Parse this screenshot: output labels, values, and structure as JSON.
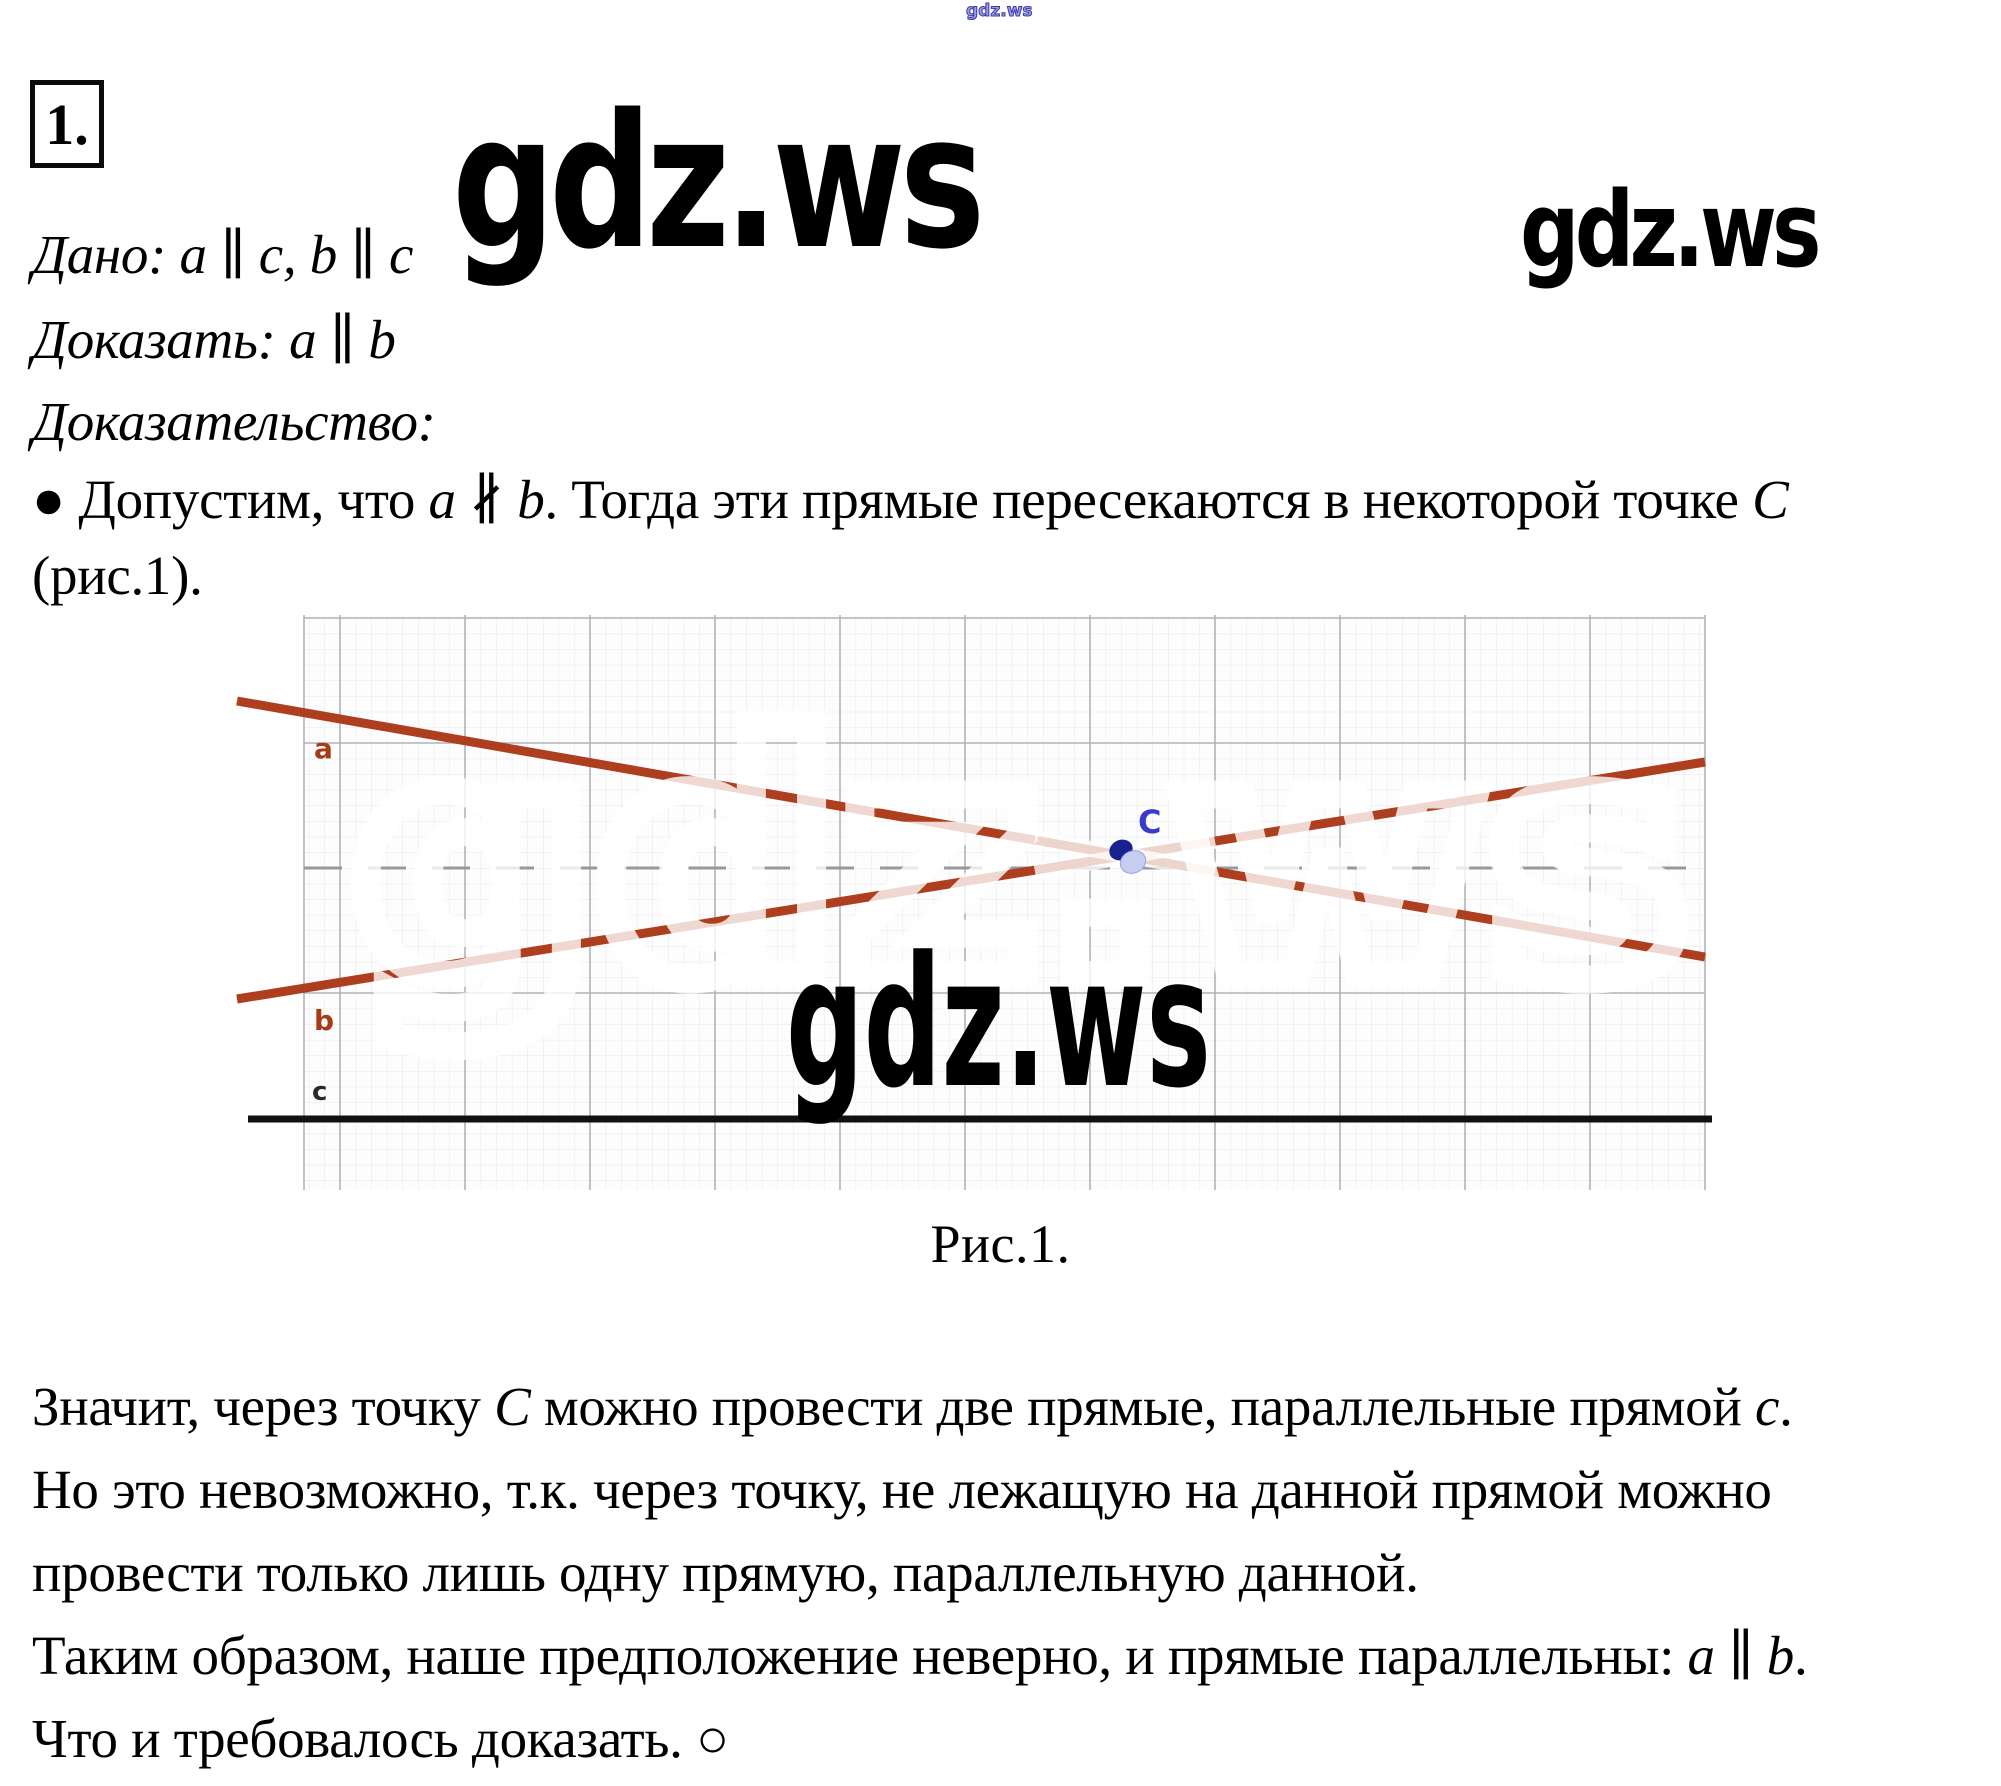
{
  "problem": {
    "number": "1."
  },
  "watermarks": {
    "top_small": "gdz.ws",
    "top_center": "gdz.ws",
    "top_right": "gdz.ws",
    "figure_black": "gdz.ws",
    "figure_white": "gdz.ws"
  },
  "statement": {
    "given": "Дано: a ∥ c, b ∥ c",
    "prove": "Доказать: a ∥ b",
    "proof_heading": "Доказательство:",
    "step1": [
      {
        "t": "● Допустим, что "
      },
      {
        "t": "a",
        "i": true
      },
      {
        "t": " ∦ "
      },
      {
        "t": "b",
        "i": true
      },
      {
        "t": ". Тогда эти прямые пересекаются в некоторой точке "
      },
      {
        "t": "C",
        "i": true
      }
    ],
    "step1_cont": "(рис.1)."
  },
  "figure": {
    "caption": "Рис.1.",
    "labels": {
      "line_a": "a",
      "line_b": "b",
      "line_c": "c",
      "point": "C"
    },
    "colors": {
      "line_ab": "#ad3f1e",
      "line_c": "#111111",
      "label_ab": "#a63c16",
      "label_c": "#2a2a2a",
      "point_label": "#3b3bcb",
      "point_dark": "#17228f",
      "point_light": "#c7ccf1",
      "grid_minor": "#e8e8ec",
      "grid_major": "#b2b2b8"
    }
  },
  "conclusion": {
    "l1": [
      {
        "t": "Значит, через точку "
      },
      {
        "t": "C",
        "i": true
      },
      {
        "t": " можно провести две прямые, параллельные прямой "
      },
      {
        "t": "c",
        "i": true
      },
      {
        "t": "."
      }
    ],
    "l2": "Но это невозможно, т.к. через точку, не лежащую на данной прямой можно",
    "l3": "провести только лишь одну прямую, параллельную данной.",
    "l4": [
      {
        "t": "Таким образом, наше предположение неверно, и прямые параллельны: "
      },
      {
        "t": "a",
        "i": true
      },
      {
        "t": " ∥ "
      },
      {
        "t": "b",
        "i": true
      },
      {
        "t": "."
      }
    ],
    "l5": "Что и требовалось доказать.  ○"
  }
}
